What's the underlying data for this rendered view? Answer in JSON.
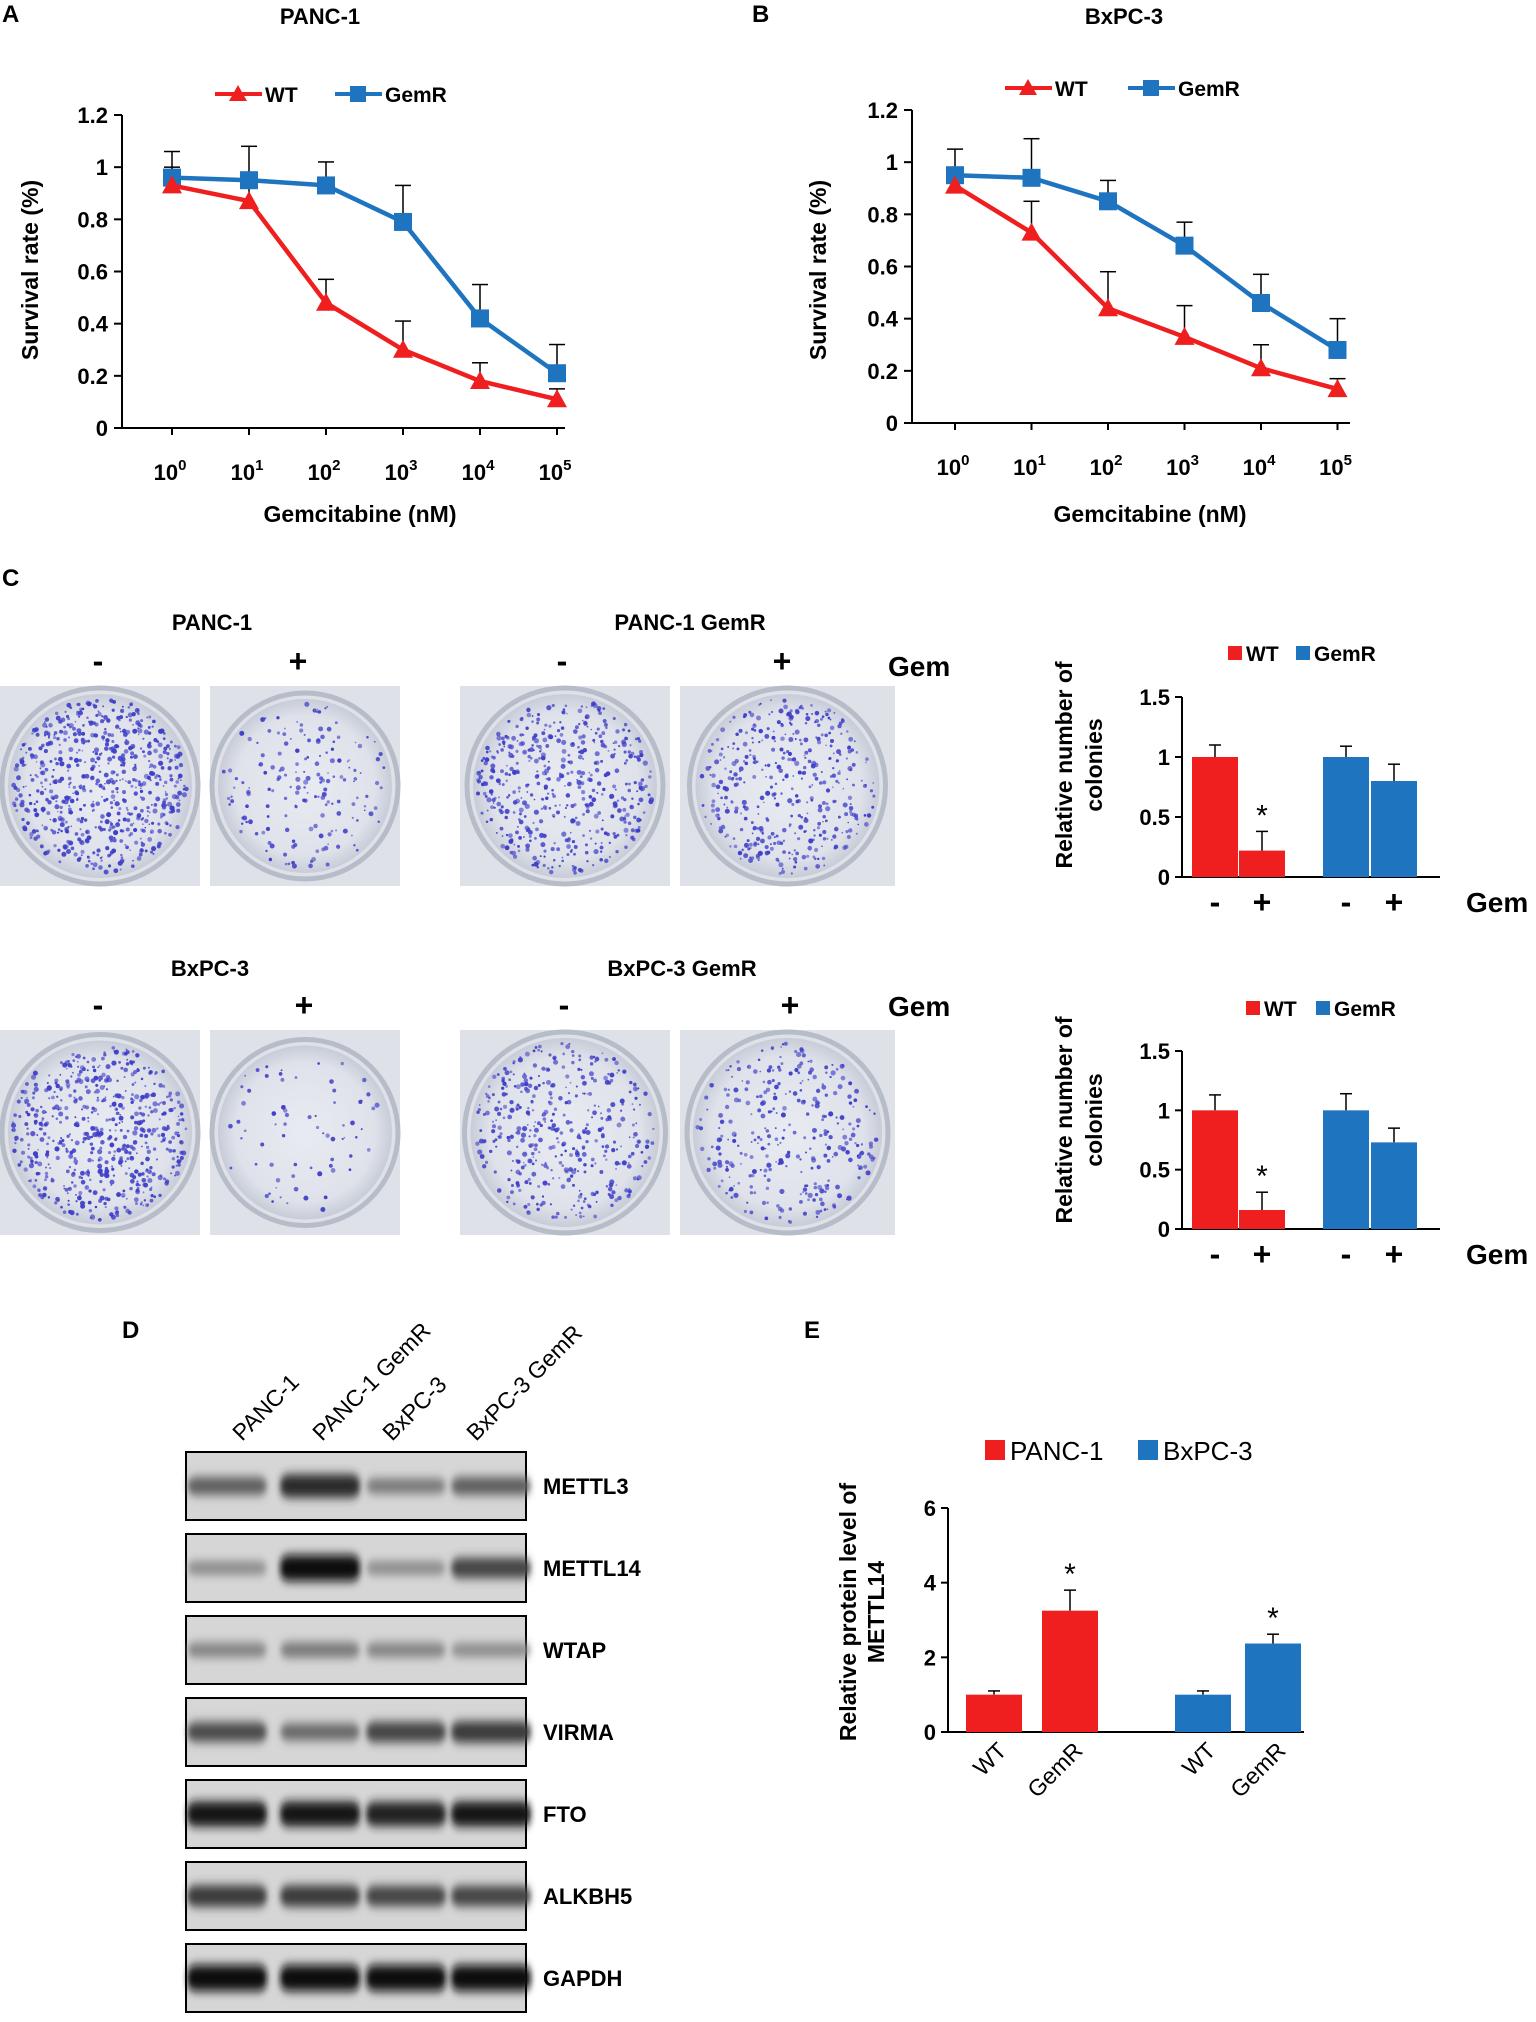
{
  "panels": [
    "A",
    "B",
    "C",
    "D",
    "E"
  ],
  "colors": {
    "wt": "#ef1f1f",
    "gemr": "#1f74c0",
    "axis": "#000000"
  },
  "icons": [
    "triangle-marker",
    "square-marker"
  ],
  "chart_data": [
    {
      "id": "A",
      "type": "line",
      "title": "PANC-1",
      "xlabel": "Gemcitabine (nM)",
      "ylabel": "Survival rate (%)",
      "x": [
        0,
        1,
        2,
        3,
        4,
        5
      ],
      "x_tick_labels": [
        {
          "base": "10",
          "exp": "0"
        },
        {
          "base": "10",
          "exp": "1"
        },
        {
          "base": "10",
          "exp": "2"
        },
        {
          "base": "10",
          "exp": "3"
        },
        {
          "base": "10",
          "exp": "4"
        },
        {
          "base": "10",
          "exp": "5"
        }
      ],
      "ylim": [
        0,
        1.2
      ],
      "y_ticks": [
        "0",
        "0.2",
        "0.4",
        "0.6",
        "0.8",
        "1",
        "1.2"
      ],
      "legend": [
        "WT",
        "GemR"
      ],
      "series": [
        {
          "name": "WT",
          "values": [
            0.93,
            0.87,
            0.48,
            0.3,
            0.18,
            0.11
          ],
          "errors": [
            0.07,
            0.07,
            0.09,
            0.11,
            0.07,
            0.04
          ]
        },
        {
          "name": "GemR",
          "values": [
            0.96,
            0.95,
            0.93,
            0.79,
            0.42,
            0.21
          ],
          "errors": [
            0.1,
            0.13,
            0.09,
            0.14,
            0.13,
            0.11
          ]
        }
      ]
    },
    {
      "id": "B",
      "type": "line",
      "title": "BxPC-3",
      "xlabel": "Gemcitabine (nM)",
      "ylabel": "Survival rate (%)",
      "x": [
        0,
        1,
        2,
        3,
        4,
        5
      ],
      "x_tick_labels": [
        {
          "base": "10",
          "exp": "0"
        },
        {
          "base": "10",
          "exp": "1"
        },
        {
          "base": "10",
          "exp": "2"
        },
        {
          "base": "10",
          "exp": "3"
        },
        {
          "base": "10",
          "exp": "4"
        },
        {
          "base": "10",
          "exp": "5"
        }
      ],
      "ylim": [
        0,
        1.2
      ],
      "y_ticks": [
        "0",
        "0.2",
        "0.4",
        "0.6",
        "0.8",
        "1",
        "1.2"
      ],
      "legend": [
        "WT",
        "GemR"
      ],
      "series": [
        {
          "name": "WT",
          "values": [
            0.91,
            0.73,
            0.44,
            0.33,
            0.21,
            0.13
          ],
          "errors": [
            0.05,
            0.12,
            0.14,
            0.12,
            0.09,
            0.04
          ]
        },
        {
          "name": "GemR",
          "values": [
            0.95,
            0.94,
            0.85,
            0.68,
            0.46,
            0.28
          ],
          "errors": [
            0.1,
            0.15,
            0.08,
            0.09,
            0.11,
            0.12
          ]
        }
      ]
    },
    {
      "id": "C-top",
      "type": "bar",
      "ylabel_lines": [
        "Relative number of",
        "colonies"
      ],
      "ylim": [
        0,
        1.5
      ],
      "y_ticks": [
        "0",
        "0.5",
        "1",
        "1.5"
      ],
      "legend": [
        "WT",
        "GemR"
      ],
      "treatment_label": "Gem",
      "categories": [
        "-",
        "+",
        "-",
        "+"
      ],
      "bars": [
        {
          "series": "WT",
          "value": 1.0,
          "error": 0.1
        },
        {
          "series": "WT",
          "value": 0.22,
          "error": 0.16,
          "annotation": "*"
        },
        {
          "series": "GemR",
          "value": 1.0,
          "error": 0.09
        },
        {
          "series": "GemR",
          "value": 0.8,
          "error": 0.14
        }
      ]
    },
    {
      "id": "C-bottom",
      "type": "bar",
      "ylabel_lines": [
        "Relative number of",
        "colonies"
      ],
      "ylim": [
        0,
        1.5
      ],
      "y_ticks": [
        "0",
        "0.5",
        "1",
        "1.5"
      ],
      "legend": [
        "WT",
        "GemR"
      ],
      "treatment_label": "Gem",
      "categories": [
        "-",
        "+",
        "-",
        "+"
      ],
      "bars": [
        {
          "series": "WT",
          "value": 1.0,
          "error": 0.13
        },
        {
          "series": "WT",
          "value": 0.16,
          "error": 0.15,
          "annotation": "*"
        },
        {
          "series": "GemR",
          "value": 1.0,
          "error": 0.14
        },
        {
          "series": "GemR",
          "value": 0.73,
          "error": 0.12
        }
      ]
    },
    {
      "id": "E",
      "type": "bar",
      "ylabel_lines": [
        "Relative protein level of",
        "METTL14"
      ],
      "ylim": [
        0,
        6
      ],
      "y_ticks": [
        "0",
        "2",
        "4",
        "6"
      ],
      "legend": [
        "PANC-1",
        "BxPC-3"
      ],
      "categories": [
        "WT",
        "GemR",
        "WT",
        "GemR"
      ],
      "bars": [
        {
          "series": "PANC-1",
          "value": 1.0,
          "error": 0.1
        },
        {
          "series": "PANC-1",
          "value": 3.25,
          "error": 0.55,
          "annotation": "*"
        },
        {
          "series": "BxPC-3",
          "value": 1.0,
          "error": 0.1
        },
        {
          "series": "BxPC-3",
          "value": 2.37,
          "error": 0.25,
          "annotation": "*"
        }
      ]
    }
  ],
  "colony_panel": {
    "groups": [
      {
        "title": "PANC-1",
        "conditions": [
          "-",
          "+"
        ]
      },
      {
        "title": "PANC-1 GemR",
        "conditions": [
          "-",
          "+"
        ]
      },
      {
        "title": "BxPC-3",
        "conditions": [
          "-",
          "+"
        ]
      },
      {
        "title": "BxPC-3 GemR",
        "conditions": [
          "-",
          "+"
        ]
      }
    ],
    "treatment_label": "Gem",
    "colony_density": [
      0.95,
      0.25,
      0.7,
      0.6,
      0.85,
      0.1,
      0.6,
      0.45
    ]
  },
  "western_blot": {
    "lanes": [
      "PANC-1",
      "PANC-1 GemR",
      "BxPC-3",
      "BxPC-3 GemR"
    ],
    "proteins": [
      {
        "name": "METTL3",
        "intensities": [
          0.55,
          0.85,
          0.4,
          0.55
        ]
      },
      {
        "name": "METTL14",
        "intensities": [
          0.3,
          1.0,
          0.3,
          0.7
        ]
      },
      {
        "name": "WTAP",
        "intensities": [
          0.35,
          0.4,
          0.35,
          0.3
        ]
      },
      {
        "name": "VIRMA",
        "intensities": [
          0.65,
          0.5,
          0.7,
          0.75
        ]
      },
      {
        "name": "FTO",
        "intensities": [
          0.95,
          0.95,
          0.9,
          0.95
        ]
      },
      {
        "name": "ALKBH5",
        "intensities": [
          0.75,
          0.75,
          0.7,
          0.7
        ]
      },
      {
        "name": "GAPDH",
        "intensities": [
          1.0,
          1.0,
          1.0,
          1.0
        ]
      }
    ]
  }
}
